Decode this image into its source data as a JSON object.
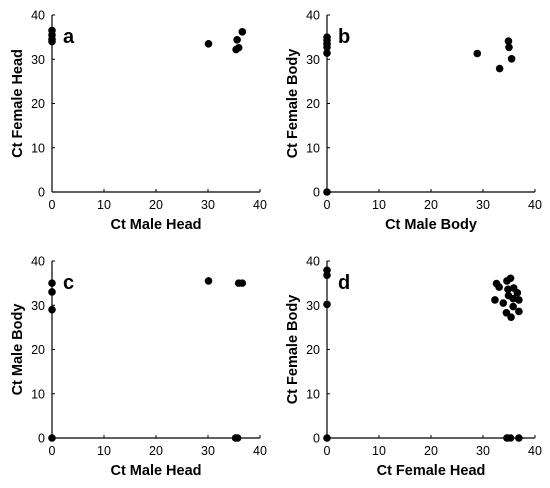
{
  "chart_data": [
    {
      "type": "scatter",
      "panel_label": "a",
      "xlabel": "Ct Male Head",
      "ylabel": "Ct Female Head",
      "xlim": [
        0,
        40
      ],
      "ylim": [
        0,
        40
      ],
      "xticks": [
        "0",
        "10",
        "20",
        "30",
        "40"
      ],
      "yticks": [
        "0",
        "10",
        "20",
        "30",
        "40"
      ],
      "grid": false,
      "points": [
        {
          "x": 0,
          "y": 36.5
        },
        {
          "x": 0,
          "y": 35.5
        },
        {
          "x": 0,
          "y": 34.5
        },
        {
          "x": 0,
          "y": 34.0
        },
        {
          "x": 30.1,
          "y": 33.5
        },
        {
          "x": 35.6,
          "y": 34.4
        },
        {
          "x": 36.6,
          "y": 36.2
        },
        {
          "x": 35.9,
          "y": 32.6
        },
        {
          "x": 35.4,
          "y": 32.2
        }
      ]
    },
    {
      "type": "scatter",
      "panel_label": "b",
      "xlabel": "Ct Male Body",
      "ylabel": "Ct Female Body",
      "xlim": [
        0,
        40
      ],
      "ylim": [
        0,
        40
      ],
      "xticks": [
        "0",
        "10",
        "20",
        "30",
        "40"
      ],
      "yticks": [
        "0",
        "10",
        "20",
        "30",
        "40"
      ],
      "grid": false,
      "points": [
        {
          "x": 0,
          "y": 35.0
        },
        {
          "x": 0,
          "y": 34.3
        },
        {
          "x": 0,
          "y": 33.5
        },
        {
          "x": 0,
          "y": 32.7
        },
        {
          "x": 0,
          "y": 31.4
        },
        {
          "x": 0,
          "y": 0
        },
        {
          "x": 28.9,
          "y": 31.3
        },
        {
          "x": 33.2,
          "y": 27.9
        },
        {
          "x": 34.9,
          "y": 34.1
        },
        {
          "x": 35.0,
          "y": 32.7
        },
        {
          "x": 35.5,
          "y": 30.1
        }
      ]
    },
    {
      "type": "scatter",
      "panel_label": "c",
      "xlabel": "Ct Male Head",
      "ylabel": "Ct Male Body",
      "xlim": [
        0,
        40
      ],
      "ylim": [
        0,
        40
      ],
      "xticks": [
        "0",
        "10",
        "20",
        "30",
        "40"
      ],
      "yticks": [
        "0",
        "10",
        "20",
        "30",
        "40"
      ],
      "grid": false,
      "points": [
        {
          "x": 0,
          "y": 35.0
        },
        {
          "x": 0,
          "y": 33.0
        },
        {
          "x": 0,
          "y": 29.0
        },
        {
          "x": 0,
          "y": 0
        },
        {
          "x": 30.1,
          "y": 35.5
        },
        {
          "x": 35.9,
          "y": 35.0
        },
        {
          "x": 36.6,
          "y": 35.0
        },
        {
          "x": 35.3,
          "y": 0
        },
        {
          "x": 35.7,
          "y": 0
        }
      ]
    },
    {
      "type": "scatter",
      "panel_label": "d",
      "xlabel": "Ct Female Head",
      "ylabel": "Ct Female Body",
      "xlim": [
        0,
        40
      ],
      "ylim": [
        0,
        40
      ],
      "xticks": [
        "0",
        "10",
        "20",
        "30",
        "40"
      ],
      "yticks": [
        "0",
        "10",
        "20",
        "30",
        "40"
      ],
      "grid": false,
      "points": [
        {
          "x": 0,
          "y": 37.9
        },
        {
          "x": 0,
          "y": 36.8
        },
        {
          "x": 0,
          "y": 30.2
        },
        {
          "x": 0,
          "y": 0
        },
        {
          "x": 32.6,
          "y": 34.9
        },
        {
          "x": 33.1,
          "y": 34.1
        },
        {
          "x": 34.6,
          "y": 35.5
        },
        {
          "x": 35.3,
          "y": 36.1
        },
        {
          "x": 34.8,
          "y": 33.6
        },
        {
          "x": 35.9,
          "y": 33.9
        },
        {
          "x": 36.6,
          "y": 32.8
        },
        {
          "x": 34.9,
          "y": 32.2
        },
        {
          "x": 35.8,
          "y": 31.5
        },
        {
          "x": 36.9,
          "y": 31.2
        },
        {
          "x": 32.3,
          "y": 31.2
        },
        {
          "x": 33.9,
          "y": 30.5
        },
        {
          "x": 35.8,
          "y": 29.7
        },
        {
          "x": 34.5,
          "y": 28.3
        },
        {
          "x": 36.9,
          "y": 28.6
        },
        {
          "x": 35.4,
          "y": 27.3
        },
        {
          "x": 34.6,
          "y": 0
        },
        {
          "x": 35.3,
          "y": 0
        },
        {
          "x": 36.9,
          "y": 0
        }
      ]
    }
  ]
}
